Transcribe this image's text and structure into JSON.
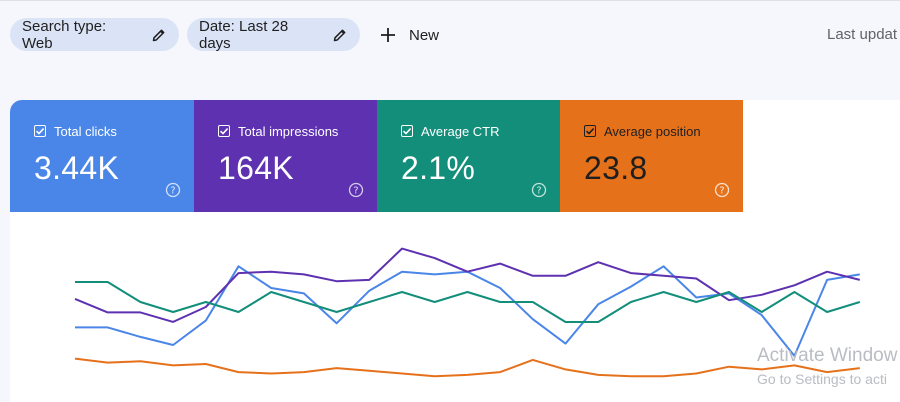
{
  "toolbar": {
    "chips": [
      {
        "label": "Search type: Web"
      },
      {
        "label": "Date: Last 28 days"
      }
    ],
    "new_label": "New",
    "last_updated_text": "Last updat"
  },
  "metrics": [
    {
      "label": "Total clicks",
      "value": "3.44K",
      "color": "#4a86e8",
      "checked": true
    },
    {
      "label": "Total impressions",
      "value": "164K",
      "color": "#5d31b0",
      "checked": true
    },
    {
      "label": "Average CTR",
      "value": "2.1%",
      "color": "#128e7a",
      "checked": true
    },
    {
      "label": "Average position",
      "value": "23.8",
      "color": "#e5711b",
      "checked": true
    }
  ],
  "chart_data": {
    "type": "line",
    "title": "",
    "xlabel": "",
    "ylabel": "",
    "grid": false,
    "legend": "none",
    "x": [
      1,
      2,
      3,
      4,
      5,
      6,
      7,
      8,
      9,
      10,
      11,
      12,
      13,
      14,
      15,
      16,
      17,
      18,
      19,
      20,
      21,
      22,
      23,
      24,
      25
    ],
    "series": [
      {
        "color": "#4a86e8",
        "values": [
          55,
          55,
          48,
          42,
          60,
          100,
          84,
          80,
          58,
          82,
          96,
          94,
          96,
          84,
          61,
          43,
          72,
          85,
          100,
          77,
          80,
          64,
          34,
          90,
          94
        ]
      },
      {
        "color": "#5d31b0",
        "values": [
          76,
          66,
          66,
          59,
          70,
          95,
          96,
          94,
          89,
          90,
          113,
          106,
          96,
          102,
          93,
          93,
          103,
          95,
          93,
          91,
          75,
          79,
          86,
          96,
          90
        ]
      },
      {
        "color": "#128e7a",
        "values": [
          10,
          10,
          8,
          7,
          8,
          7,
          9,
          8,
          7,
          8,
          9,
          8,
          9,
          8,
          8,
          6,
          6,
          8,
          9,
          8,
          9,
          7,
          9,
          7,
          8
        ]
      },
      {
        "color": "#e5711b",
        "values": [
          32,
          29,
          30,
          27,
          28,
          22,
          21,
          22,
          25,
          23,
          21,
          19,
          20,
          22,
          31,
          24,
          20,
          19,
          19,
          21,
          26,
          24,
          27,
          22,
          25
        ]
      }
    ]
  }
}
